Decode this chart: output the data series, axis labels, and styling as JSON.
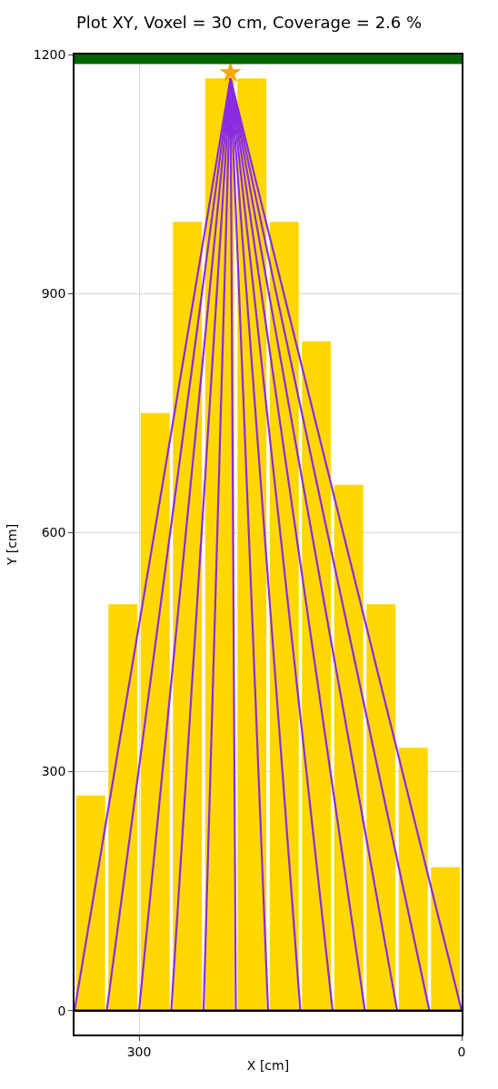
{
  "chart_data": {
    "type": "bar",
    "title": "Plot XY, Voxel = 30 cm, Coverage = 2.6 %",
    "xlabel": "X [cm]",
    "ylabel": "Y [cm]",
    "x": [
      345,
      315,
      285,
      255,
      225,
      195,
      165,
      135,
      105,
      75,
      45,
      15
    ],
    "xlim": [
      360,
      0
    ],
    "xticks": [
      300,
      0
    ],
    "ylim": [
      -30,
      1200
    ],
    "yticks": [
      0,
      300,
      600,
      900,
      1200
    ],
    "grid": true,
    "series": [
      {
        "color": "#ffd700",
        "values": [
          270,
          510,
          750,
          990,
          1170,
          1170,
          990,
          840,
          660,
          510,
          330,
          180
        ]
      },
      {
        "type": "line",
        "color": "#8a2be2",
        "x": [
          215,
          360
        ],
        "values": [
          1170,
          0
        ]
      },
      {
        "type": "line",
        "color": "#8a2be2",
        "x": [
          215,
          330
        ],
        "values": [
          1170,
          0
        ]
      },
      {
        "type": "line",
        "color": "#8a2be2",
        "x": [
          215,
          300
        ],
        "values": [
          1170,
          0
        ]
      },
      {
        "type": "line",
        "color": "#8a2be2",
        "x": [
          215,
          270
        ],
        "values": [
          1170,
          0
        ]
      },
      {
        "type": "line",
        "color": "#8a2be2",
        "x": [
          215,
          240
        ],
        "values": [
          1170,
          0
        ]
      },
      {
        "type": "line",
        "color": "#8a2be2",
        "x": [
          215,
          210
        ],
        "values": [
          1170,
          0
        ]
      },
      {
        "type": "line",
        "color": "#8a2be2",
        "x": [
          215,
          180
        ],
        "values": [
          1170,
          0
        ]
      },
      {
        "type": "line",
        "color": "#8a2be2",
        "x": [
          215,
          150
        ],
        "values": [
          1170,
          0
        ]
      },
      {
        "type": "line",
        "color": "#8a2be2",
        "x": [
          215,
          120
        ],
        "values": [
          1170,
          0
        ]
      },
      {
        "type": "line",
        "color": "#8a2be2",
        "x": [
          215,
          90
        ],
        "values": [
          1170,
          0
        ]
      },
      {
        "type": "line",
        "color": "#8a2be2",
        "x": [
          215,
          60
        ],
        "values": [
          1170,
          0
        ]
      },
      {
        "type": "line",
        "color": "#8a2be2",
        "x": [
          215,
          30
        ],
        "values": [
          1170,
          0
        ]
      },
      {
        "type": "line",
        "color": "#8a2be2",
        "x": [
          215,
          0
        ],
        "values": [
          1170,
          0
        ]
      },
      {
        "type": "scatter",
        "color": "#ffa500",
        "marker": "star",
        "x": [
          215
        ],
        "values": [
          1177
        ]
      }
    ],
    "bands": [
      {
        "axis": "y",
        "from": 1188,
        "to": 1200,
        "color": "#006400"
      }
    ],
    "ref_lines": [
      {
        "axis": "y",
        "value": 0,
        "color": "#000000"
      }
    ]
  }
}
